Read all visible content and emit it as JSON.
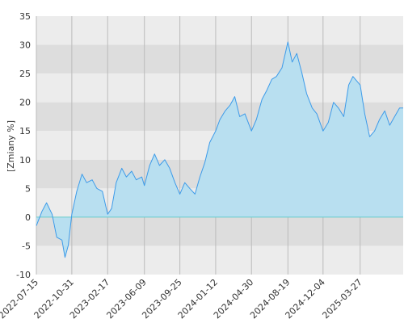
{
  "chart_data": {
    "type": "area",
    "ylabel": "[Zmiany %]",
    "ylim": [
      -10,
      35
    ],
    "y_ticks": [
      35,
      30,
      25,
      20,
      15,
      10,
      5,
      0,
      -5,
      -10
    ],
    "x_ticks": [
      "2022-07-15",
      "2022-10-31",
      "2023-02-17",
      "2023-06-09",
      "2023-09-25",
      "2024-01-12",
      "2024-04-30",
      "2024-08-19",
      "2024-12-04",
      "2025-03-27"
    ],
    "x_range": [
      "2022-07-15",
      "2025-08-05"
    ],
    "grid": true,
    "colors": {
      "line": "#3d9be9",
      "fill": "#b8dff0",
      "band_light": "#ececec",
      "band_dark": "#dddddd",
      "zero_line": "#66cccc",
      "grid": "#bbbbbb"
    },
    "series": [
      {
        "x": [
          "2022-07-15",
          "2022-08-01",
          "2022-08-15",
          "2022-09-01",
          "2022-09-15",
          "2022-10-01",
          "2022-10-10",
          "2022-10-20",
          "2022-10-31",
          "2022-11-15",
          "2022-12-01",
          "2022-12-15",
          "2023-01-01",
          "2023-01-15",
          "2023-02-01",
          "2023-02-17",
          "2023-03-01",
          "2023-03-15",
          "2023-04-01",
          "2023-04-15",
          "2023-05-01",
          "2023-05-15",
          "2023-06-01",
          "2023-06-09",
          "2023-06-25",
          "2023-07-10",
          "2023-07-25",
          "2023-08-10",
          "2023-08-25",
          "2023-09-10",
          "2023-09-25",
          "2023-10-10",
          "2023-10-25",
          "2023-11-10",
          "2023-11-25",
          "2023-12-10",
          "2023-12-25",
          "2024-01-12",
          "2024-01-25",
          "2024-02-10",
          "2024-02-25",
          "2024-03-10",
          "2024-03-25",
          "2024-04-10",
          "2024-04-30",
          "2024-05-15",
          "2024-06-01",
          "2024-06-15",
          "2024-07-01",
          "2024-07-15",
          "2024-08-01",
          "2024-08-19",
          "2024-09-01",
          "2024-09-15",
          "2024-10-01",
          "2024-10-15",
          "2024-11-01",
          "2024-11-15",
          "2024-12-04",
          "2024-12-20",
          "2025-01-05",
          "2025-01-20",
          "2025-02-05",
          "2025-02-20",
          "2025-03-05",
          "2025-03-27",
          "2025-04-10",
          "2025-04-25",
          "2025-05-10",
          "2025-05-25",
          "2025-06-10",
          "2025-06-25",
          "2025-07-10",
          "2025-07-25",
          "2025-08-05"
        ],
        "values": [
          -1.5,
          1.0,
          2.5,
          0.5,
          -3.5,
          -4.0,
          -7.0,
          -5.0,
          0.5,
          4.5,
          7.5,
          6.0,
          6.5,
          5.0,
          4.5,
          0.5,
          1.5,
          6.0,
          8.5,
          7.0,
          8.0,
          6.5,
          7.0,
          5.5,
          9.0,
          11.0,
          9.0,
          10.0,
          8.5,
          6.0,
          4.0,
          6.0,
          5.0,
          4.0,
          7.0,
          9.5,
          13.0,
          15.0,
          17.0,
          18.5,
          19.5,
          21.0,
          17.5,
          18.0,
          15.0,
          17.0,
          20.5,
          22.0,
          24.0,
          24.5,
          26.0,
          30.5,
          27.0,
          28.5,
          25.0,
          21.5,
          19.0,
          18.0,
          15.0,
          16.5,
          20.0,
          19.0,
          17.5,
          23.0,
          24.5,
          23.0,
          18.0,
          14.0,
          15.0,
          17.0,
          18.5,
          16.0,
          17.5,
          19.0,
          19.0
        ]
      }
    ]
  }
}
